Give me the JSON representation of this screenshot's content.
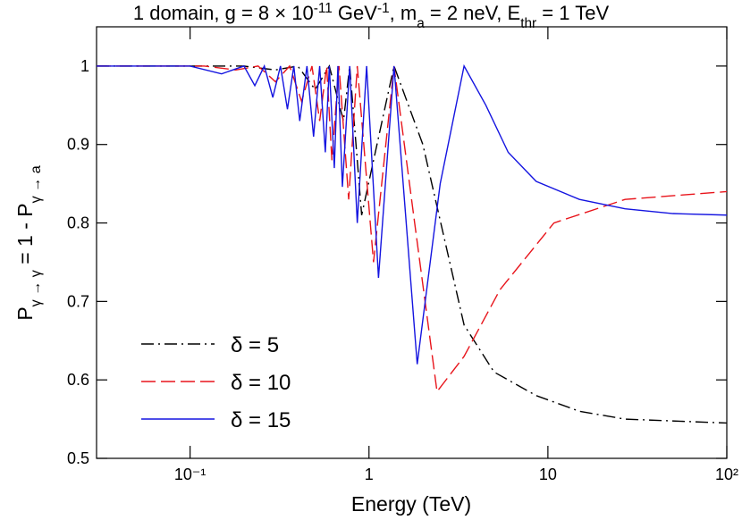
{
  "chart_data": {
    "type": "line",
    "title": [
      {
        "text": "1 domain,  g = 8 × 10"
      },
      {
        "text": "-11",
        "script": "sup"
      },
      {
        "text": " GeV"
      },
      {
        "text": "-1",
        "script": "sup"
      },
      {
        "text": ",  m"
      },
      {
        "text": "a",
        "script": "sub"
      },
      {
        "text": " = 2 neV, E"
      },
      {
        "text": "thr",
        "script": "sub"
      },
      {
        "text": " = 1 TeV"
      }
    ],
    "xlabel": "Energy (TeV)",
    "ylabel": [
      {
        "text": "P"
      },
      {
        "text": "γ → γ",
        "script": "sub"
      },
      {
        "text": "  =  1 - P"
      },
      {
        "text": "γ → a",
        "script": "sub"
      }
    ],
    "xscale": "log",
    "xlim": [
      0.03,
      100
    ],
    "ylim": [
      0.5,
      1.05
    ],
    "xticks": [
      {
        "value": 0.1,
        "label": "10⁻¹"
      },
      1,
      10,
      {
        "value": 100,
        "label": "10²"
      }
    ],
    "yticks": [
      0.5,
      0.6,
      0.7,
      0.8,
      0.9,
      1
    ],
    "legend": "lower left",
    "series": [
      {
        "name": "δ = 5",
        "color": "#000000",
        "dash": "dashdot",
        "x": [
          0.03,
          0.2,
          0.3,
          0.4,
          0.5,
          0.6,
          0.72,
          0.78,
          0.91,
          1.38,
          2,
          3.4,
          5,
          8.6,
          15,
          27,
          100
        ],
        "values": [
          1,
          1,
          0.995,
          1,
          0.97,
          1,
          0.93,
          1,
          0.81,
          1,
          0.9,
          0.67,
          0.61,
          0.58,
          0.56,
          0.55,
          0.545
        ]
      },
      {
        "name": "δ = 10",
        "color": "#e8141b",
        "dash": "longdash",
        "x": [
          0.03,
          0.12,
          0.18,
          0.24,
          0.3,
          0.36,
          0.42,
          0.48,
          0.53,
          0.58,
          0.62,
          0.68,
          0.77,
          0.86,
          1.06,
          1.38,
          1.8,
          2.4,
          3.4,
          5.4,
          10.8,
          27,
          100
        ],
        "values": [
          1,
          1,
          0.995,
          1,
          0.98,
          1,
          0.955,
          1,
          0.93,
          1,
          0.88,
          1,
          0.83,
          1,
          0.75,
          1,
          0.8,
          0.585,
          0.63,
          0.715,
          0.8,
          0.83,
          0.84
        ]
      },
      {
        "name": "δ = 15",
        "color": "#1414e0",
        "dash": "solid",
        "x": [
          0.03,
          0.1,
          0.15,
          0.2,
          0.23,
          0.26,
          0.29,
          0.32,
          0.35,
          0.38,
          0.41,
          0.45,
          0.49,
          0.53,
          0.57,
          0.6,
          0.64,
          0.67,
          0.71,
          0.78,
          0.86,
          0.97,
          1.13,
          1.38,
          1.86,
          2.5,
          3.4,
          4.5,
          6,
          8.6,
          15,
          27,
          50,
          100
        ],
        "values": [
          1,
          1,
          0.99,
          1,
          0.975,
          1,
          0.96,
          1,
          0.945,
          1,
          0.93,
          1,
          0.91,
          1,
          0.89,
          1,
          0.87,
          1,
          0.846,
          1,
          0.8,
          1,
          0.73,
          1,
          0.62,
          0.85,
          1,
          0.95,
          0.89,
          0.853,
          0.83,
          0.818,
          0.812,
          0.81
        ]
      }
    ]
  }
}
